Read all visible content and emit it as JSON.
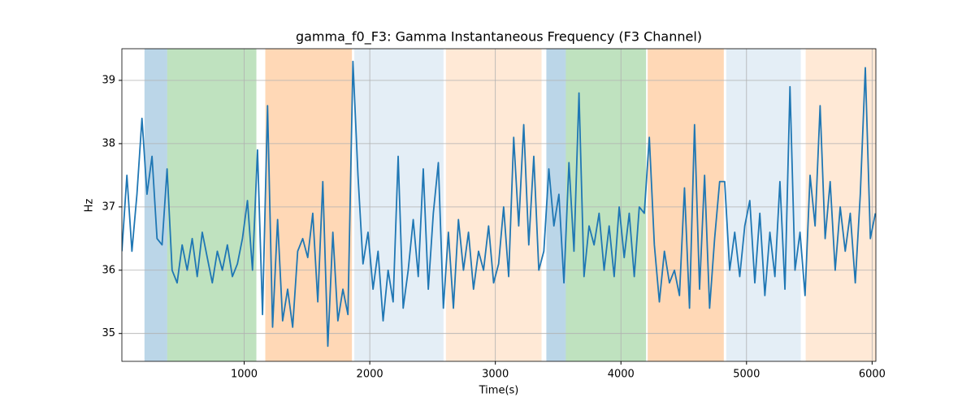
{
  "chart_data": {
    "type": "line",
    "title": "gamma_f0_F3: Gamma Instantaneous Frequency (F3 Channel)",
    "xlabel": "Time(s)",
    "ylabel": "Hz",
    "xlim": [
      26,
      6030
    ],
    "ylim": [
      34.56,
      39.5
    ],
    "xticks": [
      1000,
      2000,
      3000,
      4000,
      5000,
      6000
    ],
    "yticks": [
      35,
      36,
      37,
      38,
      39
    ],
    "grid": true,
    "spans": [
      {
        "x0": 206,
        "x1": 387,
        "color": "#1f77b4",
        "alpha": 0.3
      },
      {
        "x0": 387,
        "x1": 1097,
        "color": "#2ca02c",
        "alpha": 0.3
      },
      {
        "x0": 1168,
        "x1": 1858,
        "color": "#ff7f0e",
        "alpha": 0.3
      },
      {
        "x0": 1877,
        "x1": 2587,
        "color": "#1f77b4",
        "alpha": 0.12
      },
      {
        "x0": 2606,
        "x1": 3368,
        "color": "#ff7f0e",
        "alpha": 0.17
      },
      {
        "x0": 3406,
        "x1": 3561,
        "color": "#1f77b4",
        "alpha": 0.3
      },
      {
        "x0": 3561,
        "x1": 4200,
        "color": "#2ca02c",
        "alpha": 0.3
      },
      {
        "x0": 4213,
        "x1": 4819,
        "color": "#ff7f0e",
        "alpha": 0.3
      },
      {
        "x0": 4839,
        "x1": 5432,
        "color": "#1f77b4",
        "alpha": 0.12
      },
      {
        "x0": 5471,
        "x1": 6030,
        "color": "#ff7f0e",
        "alpha": 0.17
      }
    ],
    "x": [
      26,
      66,
      106,
      146,
      186,
      226,
      266,
      306,
      346,
      386,
      426,
      466,
      506,
      546,
      586,
      626,
      666,
      706,
      746,
      786,
      826,
      866,
      906,
      946,
      986,
      1026,
      1066,
      1106,
      1146,
      1186,
      1226,
      1266,
      1306,
      1346,
      1386,
      1426,
      1466,
      1506,
      1546,
      1586,
      1626,
      1666,
      1706,
      1746,
      1786,
      1826,
      1866,
      1906,
      1946,
      1986,
      2026,
      2066,
      2106,
      2146,
      2186,
      2226,
      2266,
      2306,
      2346,
      2386,
      2426,
      2466,
      2506,
      2546,
      2586,
      2626,
      2666,
      2706,
      2746,
      2786,
      2826,
      2866,
      2906,
      2946,
      2986,
      3026,
      3066,
      3106,
      3146,
      3186,
      3226,
      3266,
      3306,
      3346,
      3386,
      3426,
      3466,
      3506,
      3546,
      3586,
      3626,
      3666,
      3706,
      3746,
      3786,
      3826,
      3866,
      3906,
      3946,
      3986,
      4026,
      4066,
      4106,
      4146,
      4186,
      4226,
      4266,
      4306,
      4346,
      4386,
      4426,
      4466,
      4506,
      4546,
      4586,
      4626,
      4666,
      4706,
      4746,
      4786,
      4826,
      4866,
      4906,
      4946,
      4986,
      5026,
      5066,
      5106,
      5146,
      5186,
      5226,
      5266,
      5306,
      5346,
      5386,
      5426,
      5466,
      5506,
      5546,
      5586,
      5626,
      5666,
      5706,
      5746,
      5786,
      5826,
      5866,
      5906,
      5946,
      5986,
      6026
    ],
    "series": [
      {
        "color": "#1f77b4",
        "values": [
          36.3,
          37.5,
          36.3,
          37.2,
          38.4,
          37.2,
          37.8,
          36.5,
          36.4,
          37.6,
          36.0,
          35.8,
          36.4,
          36.0,
          36.5,
          35.9,
          36.6,
          36.2,
          35.8,
          36.3,
          36.0,
          36.4,
          35.9,
          36.1,
          36.5,
          37.1,
          36.0,
          37.9,
          35.3,
          38.6,
          35.1,
          36.8,
          35.2,
          35.7,
          35.1,
          36.3,
          36.5,
          36.2,
          36.9,
          35.5,
          37.4,
          34.8,
          36.6,
          35.2,
          35.7,
          35.3,
          39.3,
          37.5,
          36.1,
          36.6,
          35.7,
          36.3,
          35.2,
          36.0,
          35.5,
          37.8,
          35.4,
          36.0,
          36.8,
          35.9,
          37.6,
          35.7,
          36.9,
          37.7,
          35.4,
          36.6,
          35.4,
          36.8,
          36.0,
          36.6,
          35.7,
          36.3,
          36.0,
          36.7,
          35.8,
          36.1,
          37.0,
          35.9,
          38.1,
          36.7,
          38.3,
          36.4,
          37.8,
          36.0,
          36.3,
          37.6,
          36.7,
          37.2,
          35.8,
          37.7,
          36.3,
          38.8,
          35.9,
          36.7,
          36.4,
          36.9,
          36.0,
          36.7,
          35.9,
          37.0,
          36.2,
          36.9,
          35.9,
          37.0,
          36.9,
          38.1,
          36.4,
          35.5,
          36.3,
          35.8,
          36.0,
          35.6,
          37.3,
          35.4,
          38.3,
          35.7,
          37.5,
          35.4,
          36.5,
          37.4,
          37.4,
          36.0,
          36.6,
          35.9,
          36.7,
          37.1,
          35.8,
          36.9,
          35.6,
          36.6,
          35.9,
          37.4,
          35.7,
          38.9,
          36.0,
          36.6,
          35.6,
          37.5,
          36.7,
          38.6,
          36.5,
          37.4,
          36.0,
          37.0,
          36.3,
          36.9,
          35.8,
          37.2,
          39.2,
          36.5,
          36.9
        ]
      }
    ]
  }
}
